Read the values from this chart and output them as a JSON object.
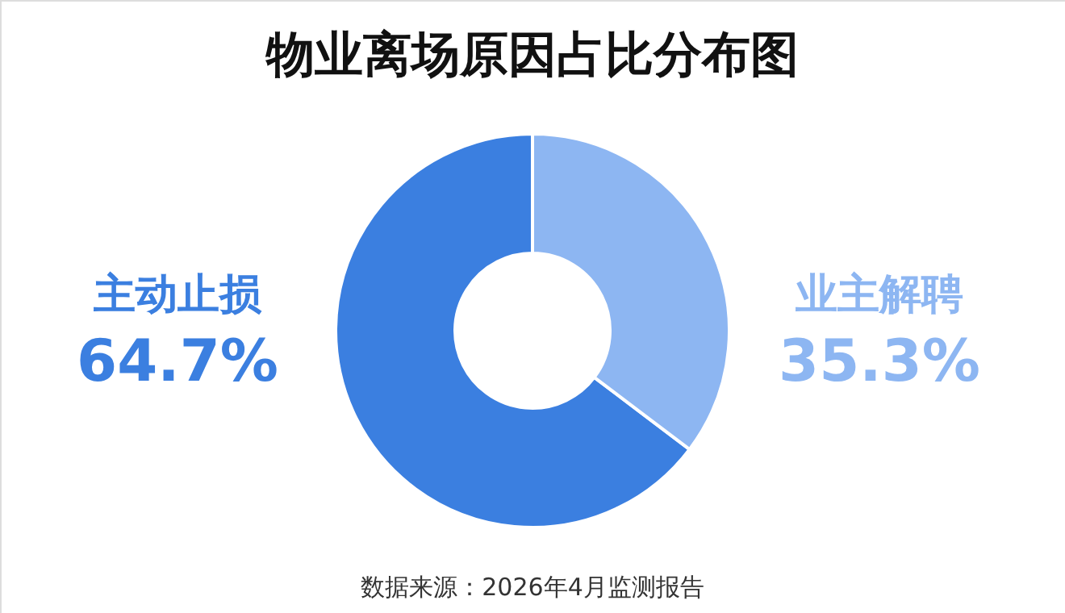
{
  "chart_data": {
    "type": "donut",
    "title": "物业离场原因占比分布图",
    "categories": [
      "主动止损",
      "业主解聘"
    ],
    "values": [
      64.7,
      35.3
    ],
    "colors": [
      "#3b7fe0",
      "#8db6f2"
    ],
    "value_labels": [
      "64.7%",
      "35.3%"
    ],
    "legend": false,
    "annotations": [
      "数据来源：2026年4月监测报告"
    ]
  }
}
